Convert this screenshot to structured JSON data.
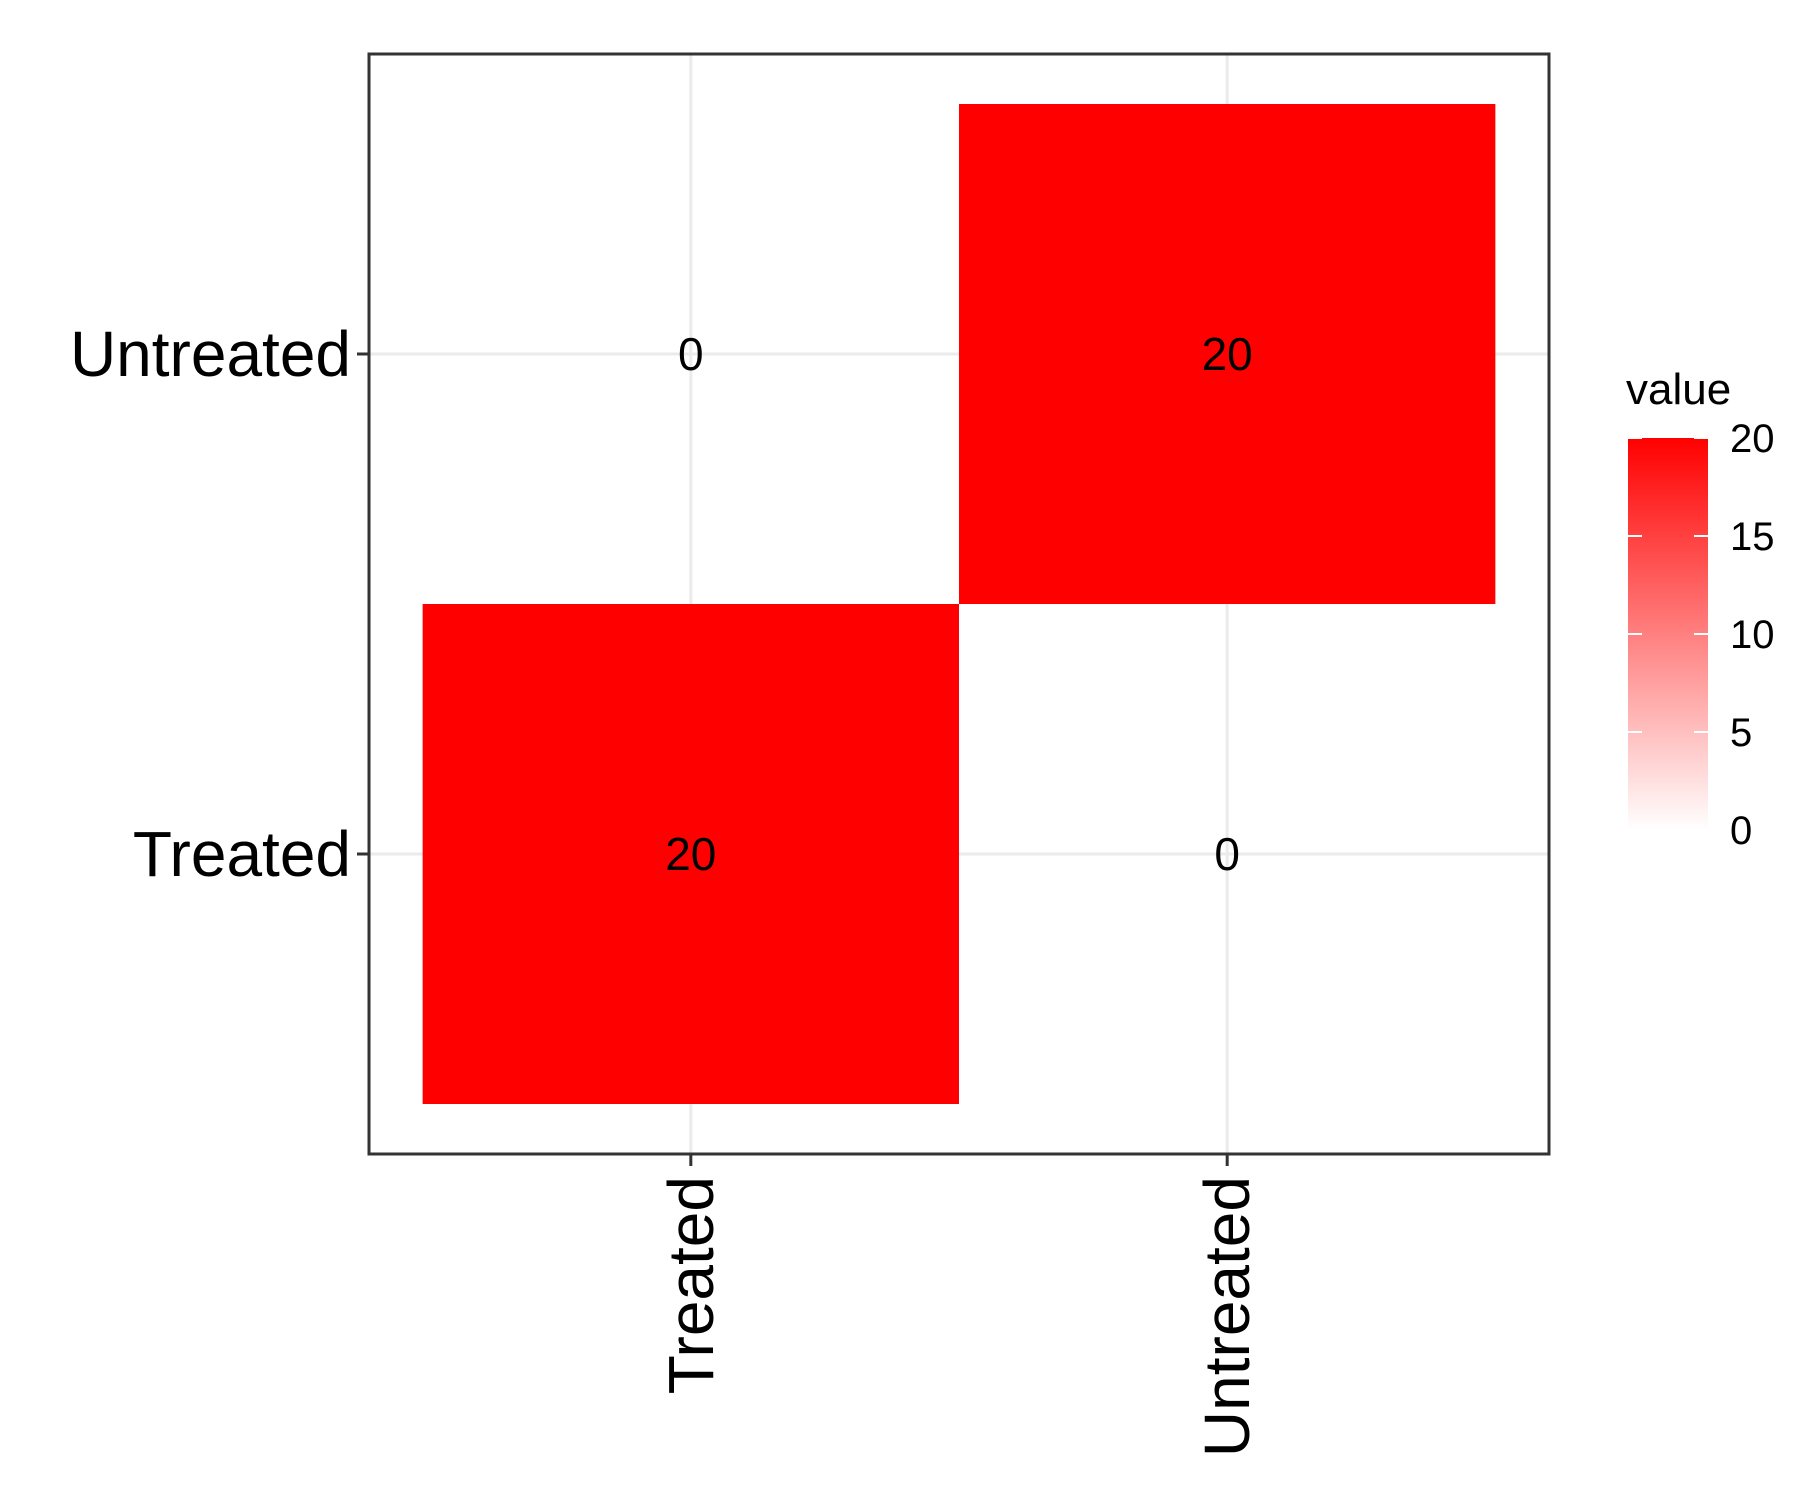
{
  "chart_data": {
    "type": "heatmap",
    "title": "",
    "xlabel": "",
    "ylabel": "",
    "x_categories": [
      "Treated",
      "Untreated"
    ],
    "y_categories": [
      "Treated",
      "Untreated"
    ],
    "cells": [
      {
        "x": "Treated",
        "y": "Untreated",
        "value": 0
      },
      {
        "x": "Untreated",
        "y": "Untreated",
        "value": 20
      },
      {
        "x": "Treated",
        "y": "Treated",
        "value": 20
      },
      {
        "x": "Untreated",
        "y": "Treated",
        "value": 0
      }
    ],
    "grid": true,
    "legend": {
      "title": "value",
      "placement": "right",
      "min": 0,
      "max": 20,
      "ticks": [
        0,
        5,
        10,
        15,
        20
      ],
      "low_color": "#ffffff",
      "high_color": "#ff0000"
    }
  }
}
